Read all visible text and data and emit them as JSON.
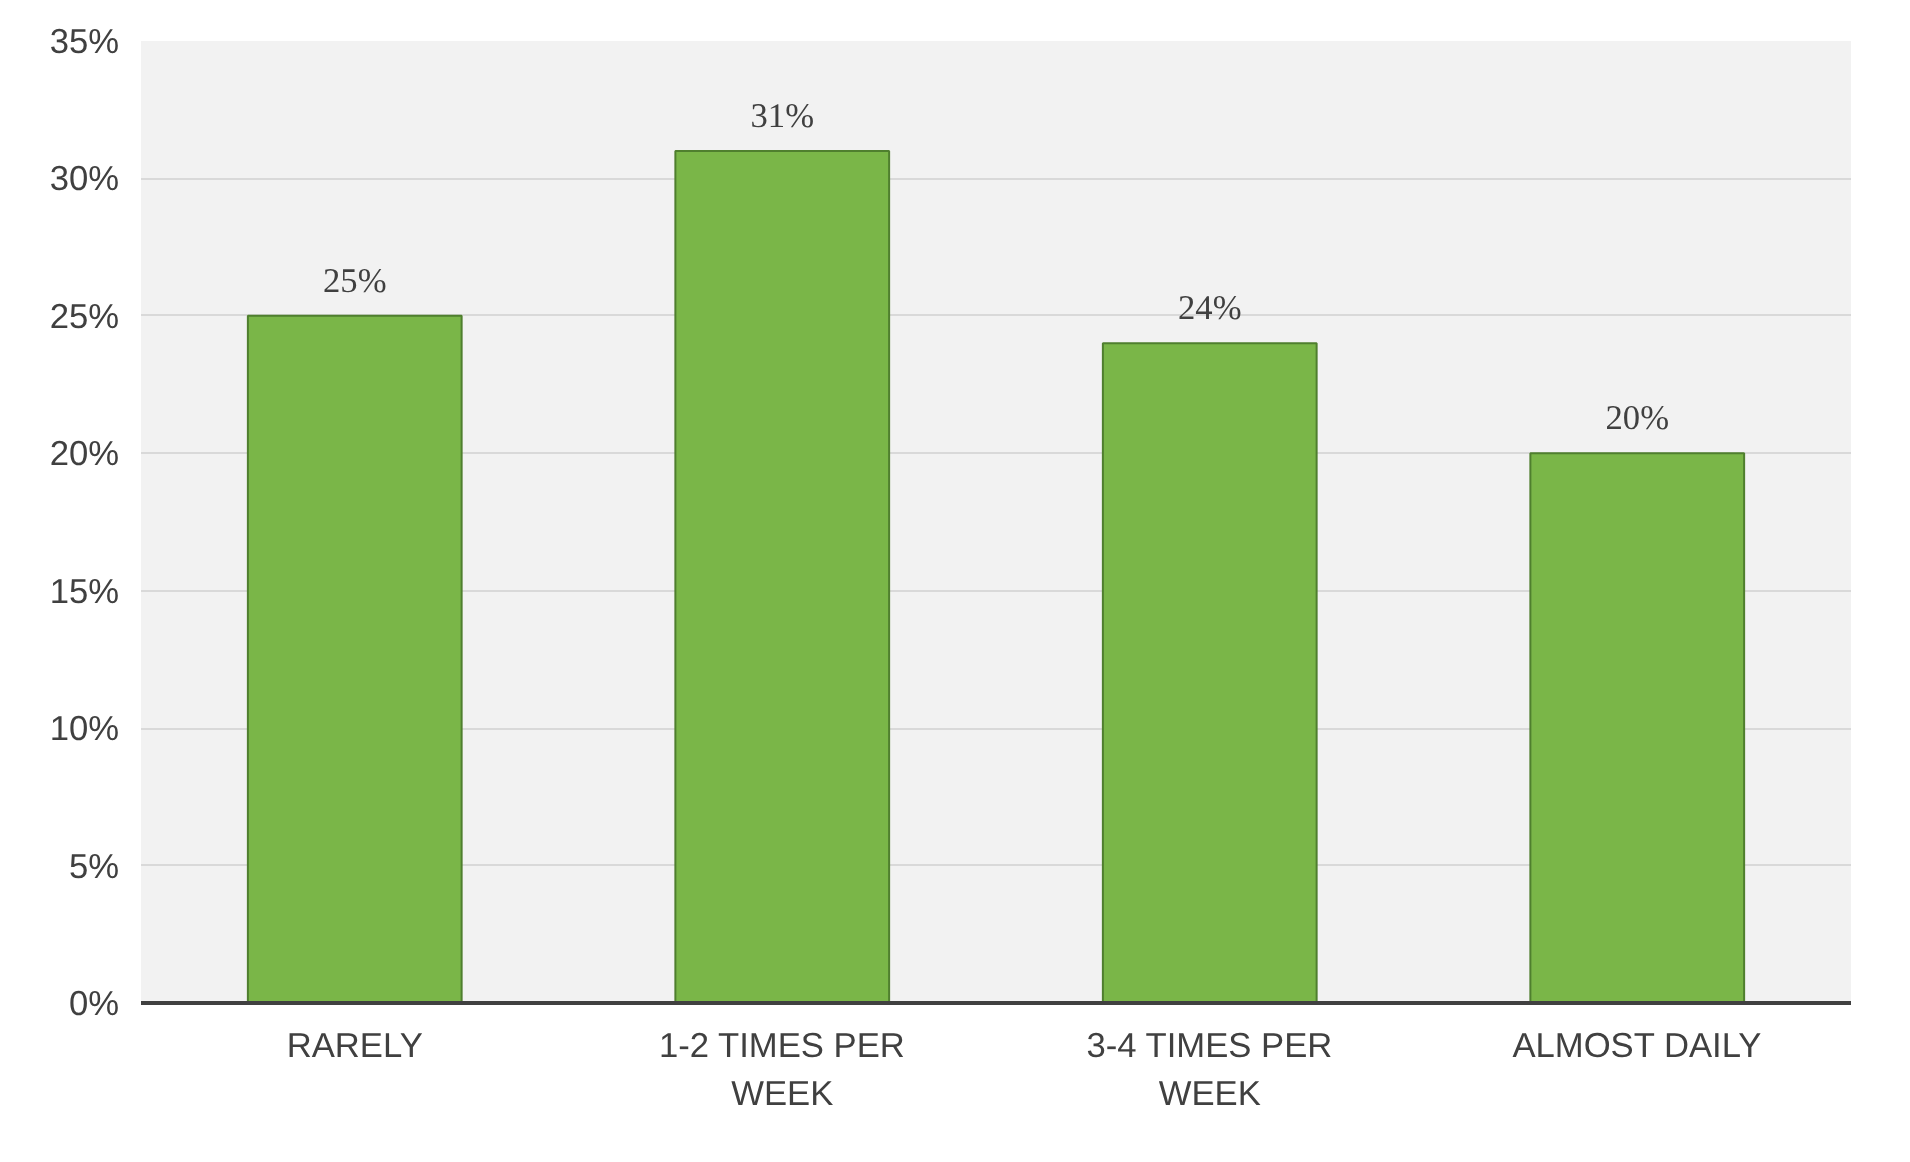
{
  "chart_data": {
    "type": "bar",
    "categories": [
      "RARELY",
      "1-2 TIMES PER WEEK",
      "3-4 TIMES PER WEEK",
      "ALMOST DAILY"
    ],
    "values": [
      25,
      31,
      24,
      20
    ],
    "value_labels": [
      "25%",
      "31%",
      "24%",
      "20%"
    ],
    "color": "#7ab648",
    "ylim": [
      0,
      35
    ],
    "yticks": [
      {
        "value": 0,
        "label": "0%"
      },
      {
        "value": 5,
        "label": "5%"
      },
      {
        "value": 10,
        "label": "10%"
      },
      {
        "value": 15,
        "label": "15%"
      },
      {
        "value": 20,
        "label": "20%"
      },
      {
        "value": 25,
        "label": "25%"
      },
      {
        "value": 30,
        "label": "30%"
      },
      {
        "value": 35,
        "label": "35%"
      }
    ],
    "grid": "y"
  }
}
